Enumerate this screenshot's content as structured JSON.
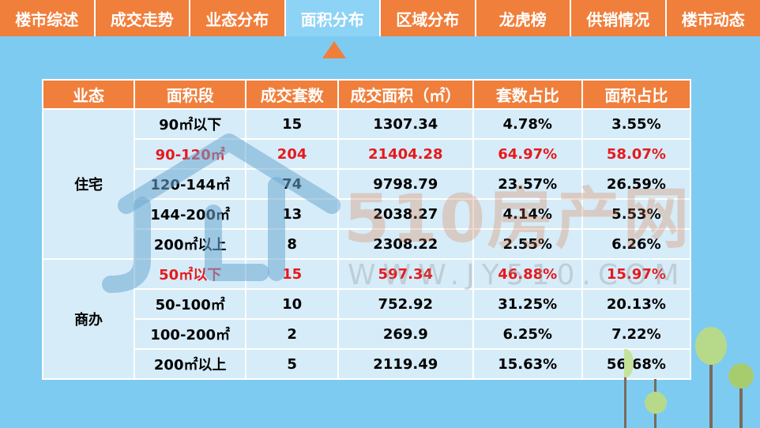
{
  "nav": {
    "tabs": [
      "楼市综述",
      "成交走势",
      "业态分布",
      "面积分布",
      "区域分布",
      "龙虎榜",
      "供销情况",
      "楼市动态"
    ],
    "active_index": 3
  },
  "table": {
    "headers": [
      "业态",
      "面积段",
      "成交套数",
      "成交面积（㎡）",
      "套数占比",
      "面积占比"
    ],
    "groups": [
      {
        "category": "住宅",
        "rows": [
          {
            "range": "90㎡以下",
            "units": "15",
            "area": "1307.34",
            "unit_share": "4.78%",
            "area_share": "3.55%",
            "highlight": false
          },
          {
            "range": "90-120㎡",
            "units": "204",
            "area": "21404.28",
            "unit_share": "64.97%",
            "area_share": "58.07%",
            "highlight": true
          },
          {
            "range": "120-144㎡",
            "units": "74",
            "area": "9798.79",
            "unit_share": "23.57%",
            "area_share": "26.59%",
            "highlight": false
          },
          {
            "range": "144-200㎡",
            "units": "13",
            "area": "2038.27",
            "unit_share": "4.14%",
            "area_share": "5.53%",
            "highlight": false
          },
          {
            "range": "200㎡以上",
            "units": "8",
            "area": "2308.22",
            "unit_share": "2.55%",
            "area_share": "6.26%",
            "highlight": false
          }
        ]
      },
      {
        "category": "商办",
        "rows": [
          {
            "range": "50㎡以下",
            "units": "15",
            "area": "597.34",
            "unit_share": "46.88%",
            "area_share": "15.97%",
            "highlight": true
          },
          {
            "range": "50-100㎡",
            "units": "10",
            "area": "752.92",
            "unit_share": "31.25%",
            "area_share": "20.13%",
            "highlight": false
          },
          {
            "range": "100-200㎡",
            "units": "2",
            "area": "269.9",
            "unit_share": "6.25%",
            "area_share": "7.22%",
            "highlight": false
          },
          {
            "range": "200㎡以上",
            "units": "5",
            "area": "2119.49",
            "unit_share": "15.63%",
            "area_share": "56.68%",
            "highlight": false
          }
        ]
      }
    ]
  },
  "watermark": {
    "brand": "510房产网",
    "url": "WWW.JY510.COM"
  },
  "colors": {
    "accent": "#f07f3c",
    "background": "#7ecbf2",
    "cell": "#d6ecf8",
    "highlight": "#e6191d"
  }
}
